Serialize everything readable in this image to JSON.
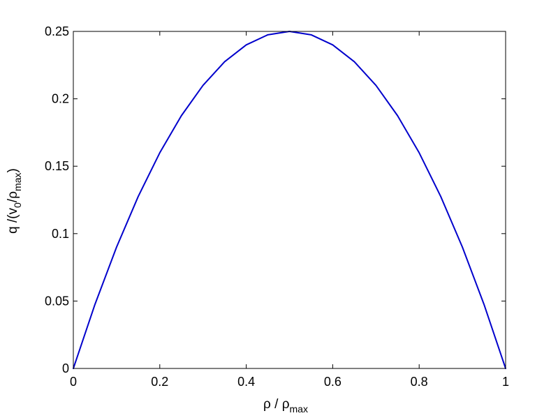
{
  "chart_data": {
    "type": "line",
    "title": "",
    "xlabel": {
      "main": "ρ / ρ",
      "sub": "max"
    },
    "ylabel": {
      "part1": "q /(v",
      "sub1": "0",
      "part2": "/ρ",
      "sub2": "max",
      "part3": ")"
    },
    "xlim": [
      0,
      1
    ],
    "ylim": [
      0,
      0.25
    ],
    "xticks": [
      0,
      0.2,
      0.4,
      0.6,
      0.8,
      1
    ],
    "xtick_labels": [
      "0",
      "0.2",
      "0.4",
      "0.6",
      "0.8",
      "1"
    ],
    "yticks": [
      0,
      0.05,
      0.1,
      0.15,
      0.2,
      0.25
    ],
    "ytick_labels": [
      "0",
      "0.05",
      "0.1",
      "0.15",
      "0.2",
      "0.25"
    ],
    "grid": false,
    "box": true,
    "series": [
      {
        "color": "#0000cc",
        "x": [
          0,
          0.05,
          0.1,
          0.15,
          0.2,
          0.25,
          0.3,
          0.35,
          0.4,
          0.45,
          0.5,
          0.55,
          0.6,
          0.65,
          0.7,
          0.75,
          0.8,
          0.85,
          0.9,
          0.95,
          1
        ],
        "y": [
          0,
          0.0475,
          0.09,
          0.1275,
          0.16,
          0.1875,
          0.21,
          0.2275,
          0.24,
          0.2475,
          0.25,
          0.2475,
          0.24,
          0.2275,
          0.21,
          0.1875,
          0.16,
          0.1275,
          0.09,
          0.0475,
          0
        ]
      }
    ]
  }
}
